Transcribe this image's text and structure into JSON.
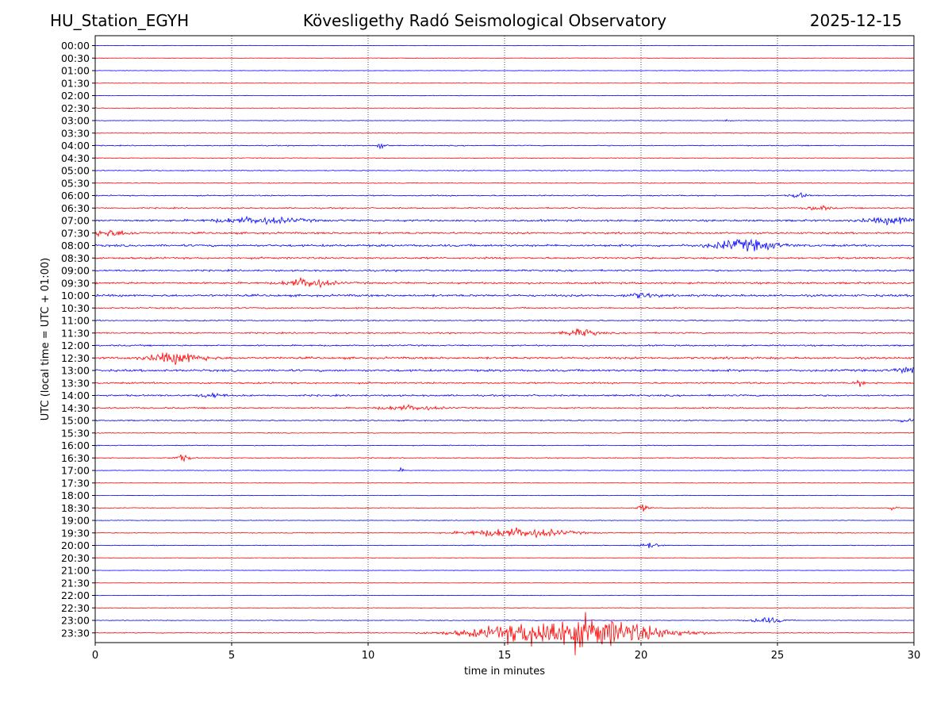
{
  "header": {
    "station": "HU_Station_EGYH",
    "title": "Kövesligethy Radó Seismological Observatory",
    "date": "2025-12-15"
  },
  "colors": {
    "even_trace": "#0000ff",
    "odd_trace": "#ff0000",
    "axis": "#000000",
    "grid": "#000000"
  },
  "chart_data": {
    "type": "line",
    "title": "Kövesligethy Radó Seismological Observatory",
    "xlabel": "time in minutes",
    "ylabel": "UTC (local time = UTC + 01:00)",
    "xlim": [
      0,
      30
    ],
    "xticks": [
      0,
      5,
      10,
      15,
      20,
      25,
      30
    ],
    "grid": "vertical dotted lines at x ticks",
    "traces": [
      {
        "label": "00:00",
        "noise": 0.2,
        "events": []
      },
      {
        "label": "00:30",
        "noise": 0.2,
        "events": []
      },
      {
        "label": "01:00",
        "noise": 0.2,
        "events": []
      },
      {
        "label": "01:30",
        "noise": 0.2,
        "events": []
      },
      {
        "label": "02:00",
        "noise": 0.25,
        "events": []
      },
      {
        "label": "02:30",
        "noise": 0.25,
        "events": []
      },
      {
        "label": "03:00",
        "noise": 0.25,
        "events": [
          {
            "t": 23.2,
            "amp": 1.0,
            "dur": 0.1
          }
        ]
      },
      {
        "label": "03:30",
        "noise": 0.3,
        "events": []
      },
      {
        "label": "04:00",
        "noise": 0.4,
        "events": [
          {
            "t": 10.5,
            "amp": 4.0,
            "dur": 0.15
          }
        ]
      },
      {
        "label": "04:30",
        "noise": 0.3,
        "events": []
      },
      {
        "label": "05:00",
        "noise": 0.35,
        "events": []
      },
      {
        "label": "05:30",
        "noise": 0.35,
        "events": []
      },
      {
        "label": "06:00",
        "noise": 0.5,
        "events": [
          {
            "t": 25.8,
            "amp": 2.0,
            "dur": 0.3
          }
        ]
      },
      {
        "label": "06:30",
        "noise": 0.55,
        "events": [
          {
            "t": 26.5,
            "amp": 2.0,
            "dur": 0.4
          }
        ]
      },
      {
        "label": "07:00",
        "noise": 0.8,
        "events": [
          {
            "t": 6.0,
            "amp": 2.5,
            "dur": 1.5
          },
          {
            "t": 29.5,
            "amp": 3.0,
            "dur": 1.2
          }
        ]
      },
      {
        "label": "07:30",
        "noise": 0.8,
        "events": [
          {
            "t": 0.5,
            "amp": 2.5,
            "dur": 0.8
          }
        ]
      },
      {
        "label": "08:00",
        "noise": 0.9,
        "events": [
          {
            "t": 23.8,
            "amp": 4.5,
            "dur": 1.2
          }
        ]
      },
      {
        "label": "08:30",
        "noise": 0.8,
        "events": []
      },
      {
        "label": "09:00",
        "noise": 0.7,
        "events": []
      },
      {
        "label": "09:30",
        "noise": 0.8,
        "events": [
          {
            "t": 7.8,
            "amp": 4.0,
            "dur": 0.8
          }
        ]
      },
      {
        "label": "10:00",
        "noise": 0.9,
        "events": [
          {
            "t": 20.0,
            "amp": 2.0,
            "dur": 0.5
          }
        ]
      },
      {
        "label": "10:30",
        "noise": 0.6,
        "events": []
      },
      {
        "label": "11:00",
        "noise": 0.5,
        "events": []
      },
      {
        "label": "11:30",
        "noise": 0.6,
        "events": [
          {
            "t": 17.8,
            "amp": 3.0,
            "dur": 0.6
          }
        ]
      },
      {
        "label": "12:00",
        "noise": 0.6,
        "events": []
      },
      {
        "label": "12:30",
        "noise": 0.9,
        "events": [
          {
            "t": 3.0,
            "amp": 4.5,
            "dur": 1.0
          }
        ]
      },
      {
        "label": "13:00",
        "noise": 0.9,
        "events": [
          {
            "t": 29.8,
            "amp": 2.5,
            "dur": 0.5
          }
        ]
      },
      {
        "label": "13:30",
        "noise": 0.7,
        "events": [
          {
            "t": 28.0,
            "amp": 2.0,
            "dur": 0.2
          }
        ]
      },
      {
        "label": "14:00",
        "noise": 0.7,
        "events": [
          {
            "t": 4.3,
            "amp": 2.0,
            "dur": 0.4
          }
        ]
      },
      {
        "label": "14:30",
        "noise": 0.6,
        "events": [
          {
            "t": 11.5,
            "amp": 2.0,
            "dur": 1.0
          }
        ]
      },
      {
        "label": "15:00",
        "noise": 0.5,
        "events": [
          {
            "t": 29.7,
            "amp": 2.0,
            "dur": 0.3
          }
        ]
      },
      {
        "label": "15:30",
        "noise": 0.35,
        "events": []
      },
      {
        "label": "16:00",
        "noise": 0.35,
        "events": []
      },
      {
        "label": "16:30",
        "noise": 0.4,
        "events": [
          {
            "t": 3.2,
            "amp": 2.5,
            "dur": 0.3
          }
        ]
      },
      {
        "label": "17:00",
        "noise": 0.25,
        "events": [
          {
            "t": 11.2,
            "amp": 1.5,
            "dur": 0.1
          }
        ]
      },
      {
        "label": "17:30",
        "noise": 0.2,
        "events": []
      },
      {
        "label": "18:00",
        "noise": 0.25,
        "events": []
      },
      {
        "label": "18:30",
        "noise": 0.3,
        "events": [
          {
            "t": 20.1,
            "amp": 3.0,
            "dur": 0.2
          },
          {
            "t": 29.2,
            "amp": 1.5,
            "dur": 0.2
          }
        ]
      },
      {
        "label": "19:00",
        "noise": 0.25,
        "events": []
      },
      {
        "label": "19:30",
        "noise": 0.35,
        "events": [
          {
            "t": 15.5,
            "amp": 4.0,
            "dur": 1.8
          }
        ]
      },
      {
        "label": "20:00",
        "noise": 0.3,
        "events": [
          {
            "t": 20.3,
            "amp": 2.0,
            "dur": 0.4
          }
        ]
      },
      {
        "label": "20:30",
        "noise": 0.2,
        "events": []
      },
      {
        "label": "21:00",
        "noise": 0.2,
        "events": []
      },
      {
        "label": "21:30",
        "noise": 0.2,
        "events": []
      },
      {
        "label": "22:00",
        "noise": 0.25,
        "events": []
      },
      {
        "label": "22:30",
        "noise": 0.25,
        "events": []
      },
      {
        "label": "23:00",
        "noise": 0.3,
        "events": [
          {
            "t": 24.6,
            "amp": 2.5,
            "dur": 0.6
          }
        ]
      },
      {
        "label": "23:30",
        "noise": 0.35,
        "events": [
          {
            "t": 17.5,
            "amp": 14.0,
            "dur": 3.0
          }
        ]
      }
    ]
  }
}
